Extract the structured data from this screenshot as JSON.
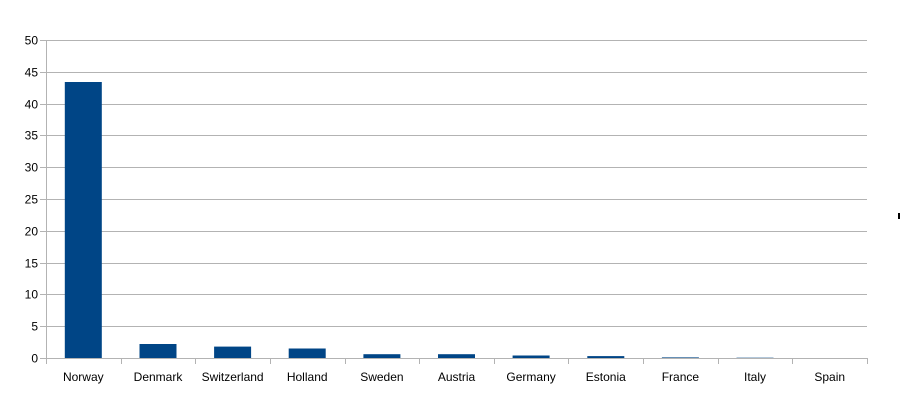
{
  "chart_data": {
    "type": "bar",
    "categories": [
      "Norway",
      "Denmark",
      "Switzerland",
      "Holland",
      "Sweden",
      "Austria",
      "Germany",
      "Estonia",
      "France",
      "Italy",
      "Spain"
    ],
    "values": [
      43.4,
      2.2,
      1.8,
      1.5,
      0.6,
      0.6,
      0.4,
      0.3,
      0.1,
      0.05,
      0.0
    ],
    "yticks": [
      "0",
      "5",
      "10",
      "15",
      "20",
      "25",
      "30",
      "35",
      "40",
      "45",
      "50"
    ],
    "ylim": [
      0,
      50
    ],
    "ystep": 5,
    "title": "",
    "xlabel": "",
    "ylabel": "",
    "grid": true,
    "bar_color": "#004586",
    "grid_color": "#b3b3b3"
  }
}
